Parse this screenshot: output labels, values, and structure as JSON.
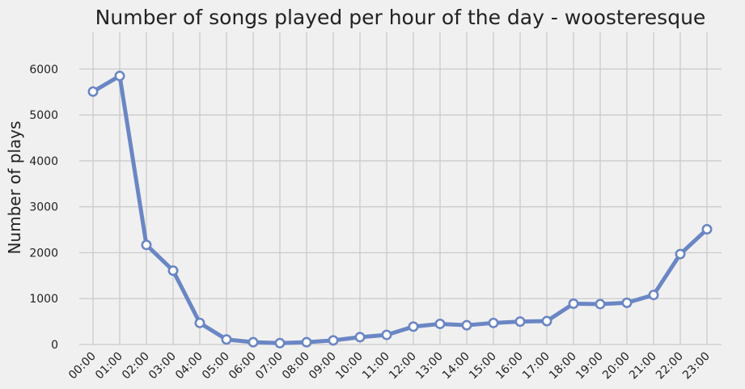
{
  "chart_data": {
    "type": "line",
    "title": "Number of songs played per hour of the day - woosteresque",
    "xlabel": "",
    "ylabel": "Number of plays",
    "categories": [
      "00:00",
      "01:00",
      "02:00",
      "03:00",
      "04:00",
      "05:00",
      "06:00",
      "07:00",
      "08:00",
      "09:00",
      "10:00",
      "11:00",
      "12:00",
      "13:00",
      "14:00",
      "15:00",
      "16:00",
      "17:00",
      "18:00",
      "19:00",
      "20:00",
      "21:00",
      "22:00",
      "23:00"
    ],
    "values": [
      5510,
      5850,
      2170,
      1610,
      470,
      110,
      50,
      30,
      50,
      90,
      160,
      210,
      390,
      450,
      420,
      470,
      500,
      510,
      890,
      880,
      910,
      1080,
      1970,
      2510
    ],
    "ylim": [
      0,
      6800
    ],
    "yticks": [
      0,
      1000,
      2000,
      3000,
      4000,
      5000,
      6000
    ],
    "grid": true,
    "line_color": "#6a86c4",
    "marker_fill": "#ffffff",
    "background": "#f0f0f0",
    "grid_color": "#cbcbcb"
  }
}
